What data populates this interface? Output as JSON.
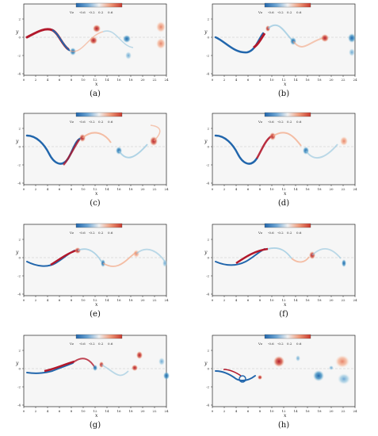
{
  "figure": {
    "colorbar": {
      "label": "Vz",
      "ticks": [
        "-0.6",
        "-0.2",
        "0.2",
        "0.6"
      ],
      "colors": [
        "#2166ac",
        "#6ea6d4",
        "#f0f0f0",
        "#f09a7a",
        "#c93a2e"
      ]
    },
    "axes": {
      "x_label": "x",
      "y_label": "y",
      "x_ticks": [
        "0",
        "2",
        "4",
        "6",
        "8",
        "10",
        "12",
        "14",
        "16",
        "18",
        "20",
        "22",
        "24"
      ],
      "y_ticks": [
        "2",
        "0",
        "-2",
        "-4"
      ]
    },
    "panels": [
      {
        "caption": "(a)"
      },
      {
        "caption": "(b)"
      },
      {
        "caption": "(c)"
      },
      {
        "caption": "(d)"
      },
      {
        "caption": "(e)"
      },
      {
        "caption": "(f)"
      },
      {
        "caption": "(g)"
      },
      {
        "caption": "(h)"
      }
    ]
  }
}
